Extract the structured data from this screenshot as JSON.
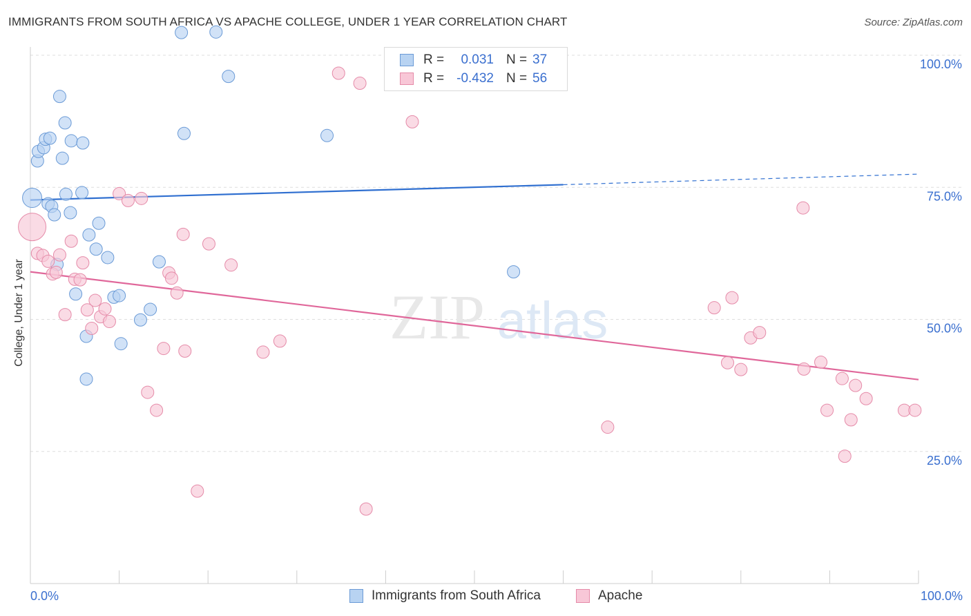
{
  "title": "IMMIGRANTS FROM SOUTH AFRICA VS APACHE COLLEGE, UNDER 1 YEAR CORRELATION CHART",
  "source": "Source: ZipAtlas.com",
  "watermark": {
    "zip": "ZIP",
    "atlas": "atlas"
  },
  "legend": {
    "r_label": "R =",
    "n_label": "N =",
    "rows": [
      {
        "name": "Immigrants from South Africa",
        "r": "0.031",
        "n": "37",
        "color": "#6a9ad6"
      },
      {
        "name": "Apache",
        "r": "-0.432",
        "n": "56",
        "color": "#e58aa8"
      }
    ]
  },
  "x_tick_left": "0.0%",
  "x_tick_right": "100.0%",
  "chart_data": {
    "type": "scatter",
    "ylabel": "College, Under 1 year",
    "xlim": [
      0,
      100
    ],
    "ylim": [
      0,
      100
    ],
    "y_ticks": [
      {
        "value": 25,
        "label": "25.0%"
      },
      {
        "value": 50,
        "label": "50.0%"
      },
      {
        "value": 75,
        "label": "75.0%"
      },
      {
        "value": 100,
        "label": "100.0%"
      }
    ],
    "grid": true,
    "series": [
      {
        "name": "Immigrants from South Africa",
        "color": "#6a9ad6",
        "fill": "#b8d3f2",
        "trend": {
          "x0": 0,
          "y0": 72.6,
          "x1": 60,
          "y1": 75.5,
          "dash_to": 100,
          "dash_y": 77.5
        },
        "points": [
          [
            0.2,
            73.0,
            14
          ],
          [
            0.8,
            80.0,
            9
          ],
          [
            0.9,
            81.8,
            9
          ],
          [
            1.5,
            82.5,
            9
          ],
          [
            1.7,
            84.1,
            9
          ],
          [
            2.2,
            84.3,
            9
          ],
          [
            3.3,
            92.2,
            9
          ],
          [
            3.6,
            80.5,
            9
          ],
          [
            3.9,
            87.2,
            9
          ],
          [
            4.6,
            83.8,
            9
          ],
          [
            5.9,
            83.4,
            9
          ],
          [
            2.0,
            71.9,
            9
          ],
          [
            2.4,
            71.4,
            9
          ],
          [
            2.7,
            69.8,
            9
          ],
          [
            4.0,
            73.7,
            9
          ],
          [
            4.5,
            70.2,
            9
          ],
          [
            5.8,
            74.0,
            9
          ],
          [
            6.6,
            66.0,
            9
          ],
          [
            7.7,
            68.2,
            9
          ],
          [
            3.0,
            60.4,
            9
          ],
          [
            5.1,
            54.8,
            9
          ],
          [
            7.4,
            63.3,
            9
          ],
          [
            8.7,
            61.7,
            9
          ],
          [
            9.4,
            54.2,
            9
          ],
          [
            10.0,
            54.5,
            9
          ],
          [
            10.2,
            45.4,
            9
          ],
          [
            6.3,
            46.8,
            9
          ],
          [
            12.4,
            49.9,
            9
          ],
          [
            13.5,
            51.9,
            9
          ],
          [
            14.5,
            60.9,
            9
          ],
          [
            17.0,
            104.3,
            9
          ],
          [
            17.3,
            85.2,
            9
          ],
          [
            20.9,
            104.4,
            9
          ],
          [
            22.3,
            96.0,
            9
          ],
          [
            33.4,
            84.8,
            9
          ],
          [
            54.4,
            59.0,
            9
          ],
          [
            6.3,
            38.7,
            9
          ]
        ]
      },
      {
        "name": "Apache",
        "color": "#e58aa8",
        "fill": "#f8c7d7",
        "trend": {
          "x0": 0,
          "y0": 59.0,
          "x1": 100,
          "y1": 38.6
        },
        "points": [
          [
            0.2,
            67.5,
            20
          ],
          [
            0.8,
            62.5,
            9
          ],
          [
            1.4,
            62.1,
            9
          ],
          [
            2.0,
            61.0,
            9
          ],
          [
            2.5,
            58.6,
            9
          ],
          [
            2.9,
            58.9,
            9
          ],
          [
            3.3,
            62.2,
            9
          ],
          [
            3.9,
            50.9,
            9
          ],
          [
            4.6,
            64.8,
            9
          ],
          [
            5.0,
            57.6,
            9
          ],
          [
            5.6,
            57.5,
            9
          ],
          [
            5.9,
            60.7,
            9
          ],
          [
            6.4,
            51.8,
            9
          ],
          [
            6.9,
            48.3,
            9
          ],
          [
            7.3,
            53.6,
            9
          ],
          [
            7.9,
            50.5,
            9
          ],
          [
            8.4,
            52.0,
            9
          ],
          [
            8.9,
            49.6,
            9
          ],
          [
            10.0,
            73.8,
            9
          ],
          [
            11.0,
            72.5,
            9
          ],
          [
            12.5,
            72.9,
            9
          ],
          [
            13.2,
            36.2,
            9
          ],
          [
            14.2,
            32.8,
            9
          ],
          [
            15.0,
            44.5,
            9
          ],
          [
            15.6,
            58.8,
            9
          ],
          [
            15.9,
            57.8,
            9
          ],
          [
            16.5,
            55.0,
            9
          ],
          [
            17.2,
            66.1,
            9
          ],
          [
            17.4,
            44.0,
            9
          ],
          [
            18.8,
            17.5,
            9
          ],
          [
            20.1,
            64.3,
            9
          ],
          [
            22.6,
            60.3,
            9
          ],
          [
            26.2,
            43.8,
            9
          ],
          [
            28.1,
            45.9,
            9
          ],
          [
            34.7,
            96.6,
            9
          ],
          [
            37.1,
            94.7,
            9
          ],
          [
            37.8,
            14.1,
            9
          ],
          [
            43.0,
            87.4,
            9
          ],
          [
            65.0,
            29.6,
            9
          ],
          [
            77.0,
            52.2,
            9
          ],
          [
            79.0,
            54.1,
            9
          ],
          [
            78.5,
            41.8,
            9
          ],
          [
            80.0,
            40.5,
            9
          ],
          [
            81.1,
            46.5,
            9
          ],
          [
            82.1,
            47.5,
            9
          ],
          [
            87.0,
            71.1,
            9
          ],
          [
            87.1,
            40.6,
            9
          ],
          [
            89.0,
            41.9,
            9
          ],
          [
            89.7,
            32.8,
            9
          ],
          [
            91.4,
            38.8,
            9
          ],
          [
            92.4,
            31.0,
            9
          ],
          [
            92.9,
            37.5,
            9
          ],
          [
            94.1,
            35.0,
            9
          ],
          [
            91.7,
            24.1,
            9
          ],
          [
            98.4,
            32.8,
            9
          ],
          [
            99.6,
            32.8,
            9
          ]
        ]
      }
    ]
  }
}
